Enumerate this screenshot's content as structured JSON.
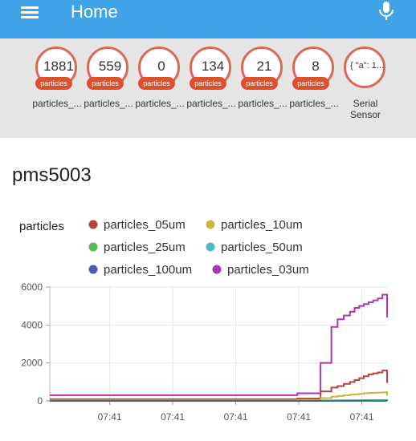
{
  "appbar": {
    "title": "Home",
    "menu_icon": "menu-icon",
    "mic_icon": "microphone-icon",
    "color": "#41a3e8"
  },
  "badges": [
    {
      "value": "1881",
      "unit": "particles",
      "label": "particles_..."
    },
    {
      "value": "559",
      "unit": "particles",
      "label": "particles_..."
    },
    {
      "value": "0",
      "unit": "particles",
      "label": "particles_..."
    },
    {
      "value": "134",
      "unit": "particles",
      "label": "particles_..."
    },
    {
      "value": "21",
      "unit": "particles",
      "label": "particles_..."
    },
    {
      "value": "8",
      "unit": "particles",
      "label": "particles_..."
    },
    {
      "value": "{ \"a\": 1...",
      "unit": "",
      "label": "Serial Sensor"
    }
  ],
  "card": {
    "title": "pms5003"
  },
  "chart_data": {
    "type": "line",
    "step": true,
    "legend_title": "particles",
    "legend_position": "top",
    "grid": true,
    "ylim": [
      0,
      6000
    ],
    "yticks": [
      0,
      2000,
      4000,
      6000
    ],
    "xticks": [
      "07:41",
      "07:41",
      "07:41",
      "07:41",
      "07:41"
    ],
    "x": [
      0,
      0.8,
      0.875,
      0.91,
      0.93,
      0.95,
      0.97,
      0.985,
      1.0,
      1.015,
      1.03,
      1.045,
      1.06,
      1.075,
      1.085,
      1.09
    ],
    "series": [
      {
        "name": "particles_05um",
        "color": "#b5423b",
        "values": [
          90,
          120,
          500,
          700,
          780,
          900,
          1000,
          1100,
          1200,
          1300,
          1400,
          1450,
          1500,
          1600,
          1600,
          950
        ]
      },
      {
        "name": "particles_10um",
        "color": "#c9b83c",
        "values": [
          30,
          40,
          150,
          220,
          260,
          300,
          330,
          350,
          370,
          400,
          420,
          430,
          440,
          450,
          460,
          280
        ]
      },
      {
        "name": "particles_25um",
        "color": "#57b955",
        "values": [
          5,
          5,
          20,
          25,
          30,
          30,
          35,
          35,
          35,
          40,
          40,
          40,
          40,
          40,
          40,
          20
        ]
      },
      {
        "name": "particles_50um",
        "color": "#4bbcc4",
        "values": [
          2,
          2,
          5,
          6,
          7,
          7,
          8,
          8,
          8,
          8,
          8,
          8,
          8,
          8,
          8,
          5
        ]
      },
      {
        "name": "particles_100um",
        "color": "#4e58b8",
        "values": [
          1,
          1,
          3,
          3,
          3,
          4,
          4,
          4,
          4,
          4,
          4,
          4,
          4,
          4,
          4,
          2
        ]
      },
      {
        "name": "particles_03um",
        "color": "#ac35b5",
        "values": [
          300,
          400,
          2000,
          3900,
          4300,
          4500,
          4700,
          4900,
          5000,
          5100,
          5200,
          5300,
          5400,
          5600,
          5600,
          4400
        ]
      }
    ]
  }
}
